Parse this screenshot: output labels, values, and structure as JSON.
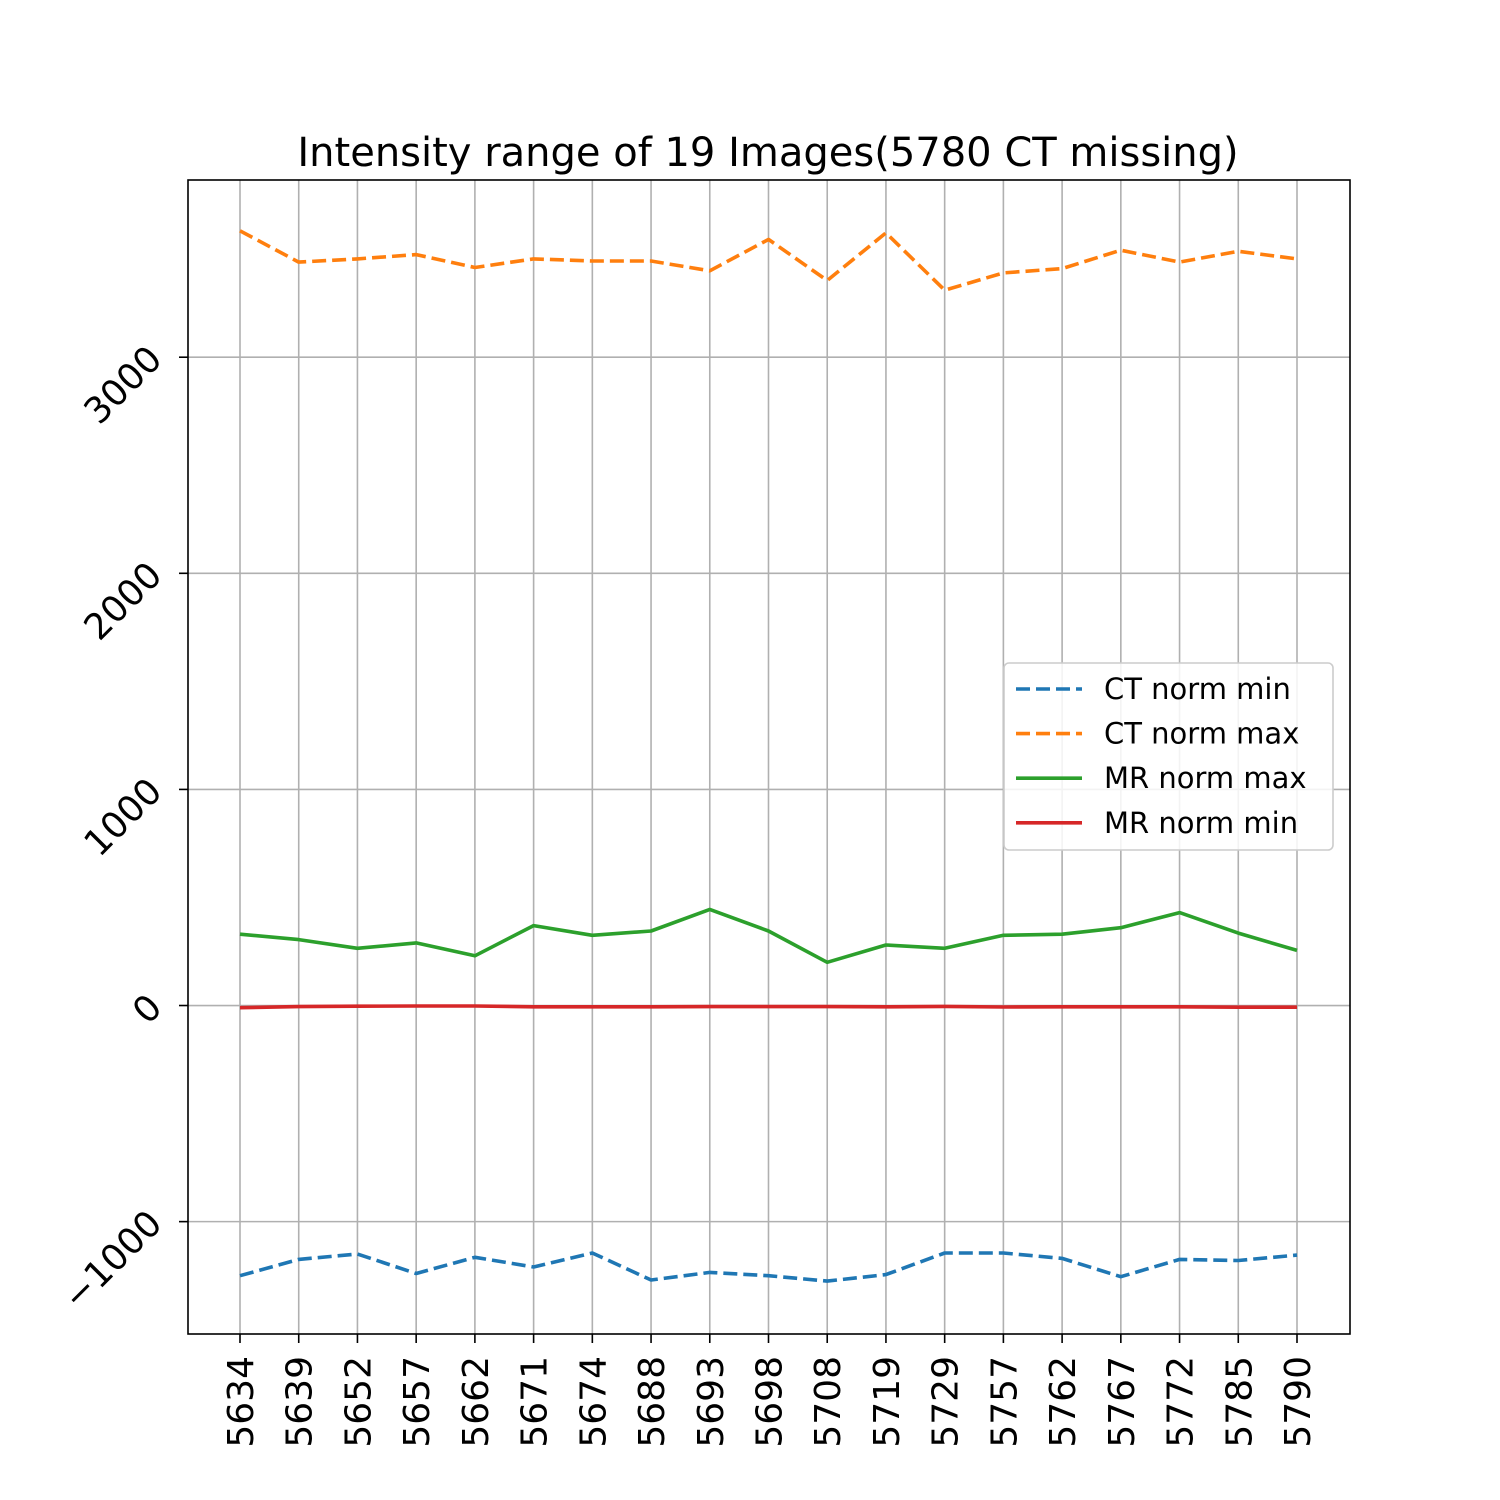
{
  "chart_data": {
    "type": "line",
    "title": "Intensity range of 19 Images(5780 CT missing)",
    "xlabel": "",
    "ylabel": "",
    "categories": [
      "5634",
      "5639",
      "5652",
      "5657",
      "5662",
      "5671",
      "5674",
      "5688",
      "5693",
      "5698",
      "5708",
      "5719",
      "5729",
      "5757",
      "5762",
      "5767",
      "5772",
      "5785",
      "5790"
    ],
    "yticks": [
      -1000,
      0,
      1000,
      2000,
      3000
    ],
    "ytick_labels": [
      "−1000",
      "0",
      "1000",
      "2000",
      "3000"
    ],
    "ylim": [
      -1520,
      3820
    ],
    "grid": true,
    "legend_position": "center-right",
    "series": [
      {
        "name": "CT norm min",
        "color": "#1f77b4",
        "style": "dashed",
        "values": [
          -1250,
          -1175,
          -1150,
          -1240,
          -1165,
          -1210,
          -1145,
          -1270,
          -1235,
          -1250,
          -1275,
          -1245,
          -1145,
          -1145,
          -1170,
          -1255,
          -1175,
          -1180,
          -1155
        ]
      },
      {
        "name": "CT norm max",
        "color": "#ff7f0e",
        "style": "dashed",
        "values": [
          3585,
          3440,
          3455,
          3475,
          3415,
          3455,
          3445,
          3445,
          3400,
          3545,
          3355,
          3575,
          3310,
          3390,
          3410,
          3495,
          3440,
          3490,
          3455
        ]
      },
      {
        "name": "MR norm max",
        "color": "#2ca02c",
        "style": "solid",
        "values": [
          330,
          305,
          265,
          290,
          230,
          370,
          325,
          345,
          445,
          345,
          200,
          280,
          265,
          325,
          330,
          360,
          430,
          335,
          255
        ]
      },
      {
        "name": "MR norm min",
        "color": "#d62728",
        "style": "solid",
        "values": [
          -10,
          -5,
          -3,
          -2,
          -2,
          -6,
          -6,
          -6,
          -5,
          -5,
          -5,
          -6,
          -4,
          -7,
          -6,
          -6,
          -6,
          -8,
          -8
        ]
      }
    ]
  }
}
